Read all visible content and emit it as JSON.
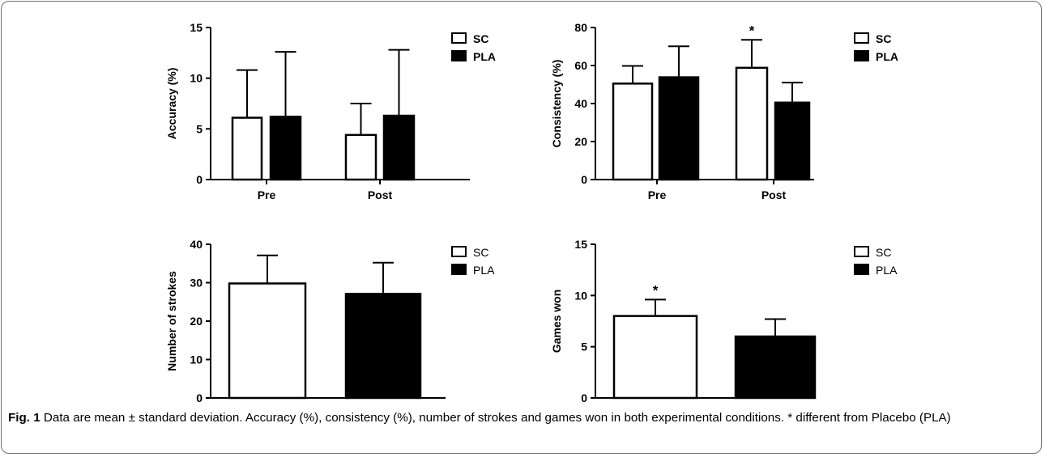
{
  "figure": {
    "caption_label": "Fig. 1",
    "caption_text": "Data are mean ± standard deviation. Accuracy (%), consistency (%), number of strokes and games won in both experimental conditions. * different from Placebo (PLA)"
  },
  "chart_data": [
    {
      "type": "bar",
      "categories": [
        "Pre",
        "Post"
      ],
      "ylabel": "Accuracy (%)",
      "ylim": [
        0,
        15
      ],
      "yticks": [
        0,
        5,
        10,
        15
      ],
      "legend": "top-right",
      "series": [
        {
          "name": "SC",
          "values": [
            6.1,
            4.4
          ],
          "errors": [
            4.7,
            3.1
          ],
          "fill": "#ffffff"
        },
        {
          "name": "PLA",
          "values": [
            6.2,
            6.3
          ],
          "errors": [
            6.4,
            6.5
          ],
          "fill": "#000000"
        }
      ],
      "annotations": []
    },
    {
      "type": "bar",
      "categories": [
        "Pre",
        "Post"
      ],
      "ylabel": "Consistency (%)",
      "ylim": [
        0,
        80
      ],
      "yticks": [
        0,
        20,
        40,
        60,
        80
      ],
      "legend": "top-right",
      "series": [
        {
          "name": "SC",
          "values": [
            50.5,
            58.8
          ],
          "errors": [
            9.3,
            14.7
          ],
          "fill": "#ffffff"
        },
        {
          "name": "PLA",
          "values": [
            53.8,
            40.5
          ],
          "errors": [
            16.3,
            10.5
          ],
          "fill": "#000000"
        }
      ],
      "annotations": [
        {
          "text": "*",
          "series": 0,
          "category": 1
        }
      ]
    },
    {
      "type": "bar",
      "categories": [
        "",
        ""
      ],
      "ylabel": "Number of strokes",
      "ylim": [
        0,
        40
      ],
      "yticks": [
        0,
        10,
        20,
        30,
        40
      ],
      "legend": "top-right",
      "series": [
        {
          "name": "SC",
          "values": [
            29.8,
            null
          ],
          "errors": [
            7.3,
            null
          ],
          "fill": "#ffffff"
        },
        {
          "name": "PLA",
          "values": [
            null,
            27.1
          ],
          "errors": [
            null,
            8.1
          ],
          "fill": "#000000"
        }
      ],
      "annotations": []
    },
    {
      "type": "bar",
      "categories": [
        "",
        ""
      ],
      "ylabel": "Games won",
      "ylim": [
        0,
        15
      ],
      "yticks": [
        0,
        5,
        10,
        15
      ],
      "legend": "top-right",
      "series": [
        {
          "name": "SC",
          "values": [
            8.0,
            null
          ],
          "errors": [
            1.6,
            null
          ],
          "fill": "#ffffff"
        },
        {
          "name": "PLA",
          "values": [
            null,
            6.0
          ],
          "errors": [
            null,
            1.7
          ],
          "fill": "#000000"
        }
      ],
      "annotations": [
        {
          "text": "*",
          "series": 0,
          "category": 0
        }
      ]
    }
  ]
}
